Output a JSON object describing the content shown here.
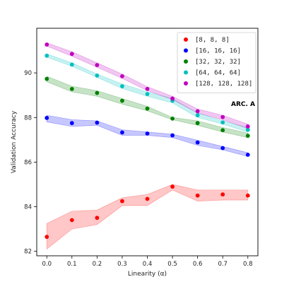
{
  "chart_data": {
    "type": "line",
    "xlabel": "Linearity (α)",
    "ylabel": "Validation Accuracy",
    "annotation": "ARC. A",
    "x": [
      0.0,
      0.1,
      0.2,
      0.3,
      0.4,
      0.5,
      0.6,
      0.7,
      0.8
    ],
    "xlim": [
      -0.04,
      0.84
    ],
    "ylim": [
      81.8,
      92.0
    ],
    "xticks": [
      "0.0",
      "0.1",
      "0.2",
      "0.3",
      "0.4",
      "0.5",
      "0.6",
      "0.7",
      "0.8"
    ],
    "yticks": [
      "82",
      "84",
      "86",
      "88",
      "90"
    ],
    "grid": false,
    "legend_position": "top-right",
    "series": [
      {
        "name": "[8, 8, 8]",
        "color": "#ff0000",
        "values": [
          82.65,
          83.4,
          83.5,
          84.25,
          84.35,
          84.9,
          84.5,
          84.55,
          84.5
        ],
        "lower": [
          82.1,
          83.0,
          83.2,
          84.05,
          84.05,
          84.75,
          84.25,
          84.3,
          84.3
        ],
        "upper": [
          83.25,
          83.8,
          83.85,
          84.4,
          84.55,
          85.0,
          84.75,
          84.75,
          84.75
        ]
      },
      {
        "name": "[16, 16, 16]",
        "color": "#0000ff",
        "values": [
          87.98,
          87.75,
          87.77,
          87.33,
          87.28,
          87.2,
          86.88,
          86.63,
          86.33
        ],
        "lower": [
          87.8,
          87.6,
          87.65,
          87.2,
          87.2,
          87.1,
          86.75,
          86.55,
          86.25
        ],
        "upper": [
          88.1,
          87.9,
          87.85,
          87.45,
          87.35,
          87.25,
          86.98,
          86.7,
          86.42
        ]
      },
      {
        "name": "[32, 32, 32]",
        "color": "#008000",
        "values": [
          89.73,
          89.28,
          89.1,
          88.75,
          88.4,
          87.95,
          87.75,
          87.43,
          87.18
        ],
        "lower": [
          89.6,
          89.15,
          88.95,
          88.6,
          88.3,
          87.9,
          87.65,
          87.35,
          87.1
        ],
        "upper": [
          89.85,
          89.4,
          89.2,
          88.85,
          88.5,
          88.0,
          87.85,
          87.55,
          87.3
        ]
      },
      {
        "name": "[64, 64, 64]",
        "color": "#00bfbf",
        "values": [
          90.77,
          90.37,
          89.88,
          89.4,
          89.05,
          88.75,
          88.1,
          87.78,
          87.45
        ],
        "lower": [
          90.7,
          90.3,
          89.8,
          89.3,
          88.95,
          88.65,
          88.0,
          87.7,
          87.35
        ],
        "upper": [
          90.85,
          90.45,
          89.95,
          89.5,
          89.15,
          88.85,
          88.2,
          87.85,
          87.55
        ]
      },
      {
        "name": "[128, 128, 128]",
        "color": "#bf00bf",
        "values": [
          91.27,
          90.85,
          90.35,
          89.85,
          89.28,
          88.85,
          88.28,
          88.02,
          87.6
        ],
        "lower": [
          91.2,
          90.75,
          90.25,
          89.75,
          89.2,
          88.8,
          88.2,
          87.9,
          87.5
        ],
        "upper": [
          91.35,
          90.95,
          90.45,
          89.95,
          89.38,
          88.95,
          88.38,
          88.1,
          87.7
        ]
      }
    ]
  }
}
